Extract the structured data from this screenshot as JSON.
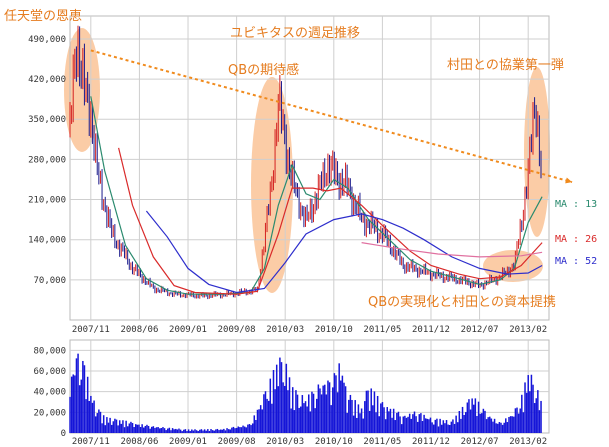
{
  "title": "ユビキタスの週足推移",
  "annotations": [
    "任天堂の恩恵",
    "QBの期待感",
    "村田との協業第一弾",
    "QBの実現化と村田との資本提携"
  ],
  "ma_labels": [
    "MA : 13",
    "MA : 26",
    "MA : 52"
  ],
  "colors": {
    "candle": "#cc2222",
    "ma13": "#2a8a6e",
    "ma26": "#d92a2a",
    "ma52": "#2e2ecc",
    "ma_long": "#e070a0",
    "volume": "#1515d8",
    "highlight": "#f7a35c",
    "trend": "#f08a1c",
    "annotation": "#e57c1f",
    "grid": "#cfcfcf"
  },
  "chart_data": [
    {
      "type": "line",
      "ylim": [
        0,
        530000
      ],
      "y_ticks": [
        70000,
        140000,
        210000,
        280000,
        350000,
        420000,
        490000
      ],
      "y_tick_labels": [
        "70,000",
        "140,000",
        "210,000",
        "280,000",
        "350,000",
        "420,000",
        "490,000"
      ],
      "x_ticks": [
        "2007/11",
        "2008/06",
        "2009/01",
        "2009/08",
        "2010/03",
        "2010/10",
        "2011/05",
        "2011/12",
        "2012/07",
        "2013/02"
      ],
      "trendline": {
        "from": [
          "2007/11",
          470000
        ],
        "to": [
          "2013/04",
          230000
        ]
      },
      "price_keypoints": [
        [
          "2007/08",
          330000
        ],
        [
          "2007/09",
          495000
        ],
        [
          "2007/10",
          400000
        ],
        [
          "2007/11",
          360000
        ],
        [
          "2007/12",
          250000
        ],
        [
          "2008/02",
          150000
        ],
        [
          "2008/05",
          90000
        ],
        [
          "2008/08",
          55000
        ],
        [
          "2008/11",
          45000
        ],
        [
          "2009/03",
          42000
        ],
        [
          "2009/07",
          45000
        ],
        [
          "2009/11",
          52000
        ],
        [
          "2010/01",
          230000
        ],
        [
          "2010/02",
          380000
        ],
        [
          "2010/04",
          240000
        ],
        [
          "2010/06",
          170000
        ],
        [
          "2010/08",
          230000
        ],
        [
          "2010/09",
          270000
        ],
        [
          "2010/10",
          255000
        ],
        [
          "2010/12",
          230000
        ],
        [
          "2011/02",
          175000
        ],
        [
          "2011/05",
          150000
        ],
        [
          "2011/08",
          95000
        ],
        [
          "2011/12",
          80000
        ],
        [
          "2012/04",
          70000
        ],
        [
          "2012/07",
          60000
        ],
        [
          "2012/10",
          75000
        ],
        [
          "2012/12",
          95000
        ],
        [
          "2013/01",
          170000
        ],
        [
          "2013/02",
          250000
        ],
        [
          "2013/03",
          395000
        ],
        [
          "2013/04",
          225000
        ]
      ],
      "series": [
        {
          "name": "MA : 13",
          "points": [
            [
              "2007/11",
              390000
            ],
            [
              "2008/01",
              260000
            ],
            [
              "2008/04",
              130000
            ],
            [
              "2008/07",
              72000
            ],
            [
              "2008/10",
              52000
            ],
            [
              "2009/01",
              45000
            ],
            [
              "2009/06",
              45000
            ],
            [
              "2009/10",
              48000
            ],
            [
              "2009/12",
              90000
            ],
            [
              "2010/02",
              200000
            ],
            [
              "2010/04",
              270000
            ],
            [
              "2010/06",
              220000
            ],
            [
              "2010/08",
              210000
            ],
            [
              "2010/10",
              245000
            ],
            [
              "2010/12",
              230000
            ],
            [
              "2011/03",
              175000
            ],
            [
              "2011/06",
              140000
            ],
            [
              "2011/09",
              105000
            ],
            [
              "2011/12",
              85000
            ],
            [
              "2012/04",
              72000
            ],
            [
              "2012/07",
              62000
            ],
            [
              "2012/10",
              70000
            ],
            [
              "2012/12",
              90000
            ],
            [
              "2013/02",
              170000
            ],
            [
              "2013/04",
              215000
            ]
          ]
        },
        {
          "name": "MA : 26",
          "points": [
            [
              "2008/03",
              300000
            ],
            [
              "2008/05",
              200000
            ],
            [
              "2008/08",
              110000
            ],
            [
              "2008/11",
              60000
            ],
            [
              "2009/02",
              48000
            ],
            [
              "2009/08",
              45000
            ],
            [
              "2009/11",
              50000
            ],
            [
              "2010/02",
              150000
            ],
            [
              "2010/04",
              230000
            ],
            [
              "2010/07",
              230000
            ],
            [
              "2010/09",
              225000
            ],
            [
              "2010/11",
              230000
            ],
            [
              "2011/02",
              200000
            ],
            [
              "2011/05",
              165000
            ],
            [
              "2011/09",
              120000
            ],
            [
              "2011/12",
              95000
            ],
            [
              "2012/04",
              80000
            ],
            [
              "2012/07",
              72000
            ],
            [
              "2012/10",
              75000
            ],
            [
              "2013/01",
              95000
            ],
            [
              "2013/04",
              135000
            ]
          ]
        },
        {
          "name": "MA : 52",
          "points": [
            [
              "2008/07",
              190000
            ],
            [
              "2008/10",
              145000
            ],
            [
              "2009/01",
              90000
            ],
            [
              "2009/04",
              62000
            ],
            [
              "2009/08",
              48000
            ],
            [
              "2009/12",
              55000
            ],
            [
              "2010/03",
              100000
            ],
            [
              "2010/06",
              150000
            ],
            [
              "2010/10",
              175000
            ],
            [
              "2011/02",
              185000
            ],
            [
              "2011/05",
              175000
            ],
            [
              "2011/08",
              160000
            ],
            [
              "2011/11",
              140000
            ],
            [
              "2012/03",
              110000
            ],
            [
              "2012/07",
              90000
            ],
            [
              "2012/11",
              80000
            ],
            [
              "2013/02",
              82000
            ],
            [
              "2013/04",
              95000
            ]
          ]
        },
        {
          "name": "",
          "points": [
            [
              "2011/02",
              135000
            ],
            [
              "2011/07",
              125000
            ],
            [
              "2012/01",
              115000
            ],
            [
              "2012/07",
              110000
            ],
            [
              "2013/01",
              112000
            ],
            [
              "2013/04",
              118000
            ]
          ]
        }
      ]
    },
    {
      "type": "bar",
      "ylim": [
        0,
        90000
      ],
      "y_ticks": [
        0,
        20000,
        40000,
        60000,
        80000
      ],
      "y_tick_labels": [
        "0",
        "20,000",
        "40,000",
        "60,000",
        "80,000"
      ],
      "x_ticks": [
        "2007/11",
        "2008/06",
        "2009/01",
        "2009/08",
        "2010/03",
        "2010/10",
        "2011/05",
        "2011/12",
        "2012/07",
        "2013/02"
      ],
      "volume_peaks": [
        [
          "2007/08",
          52000
        ],
        [
          "2007/09",
          84000
        ],
        [
          "2007/10",
          72000
        ],
        [
          "2007/11",
          40000
        ],
        [
          "2007/12",
          25000
        ],
        [
          "2008/01",
          16000
        ],
        [
          "2008/04",
          12000
        ],
        [
          "2008/06",
          9000
        ],
        [
          "2008/09",
          6000
        ],
        [
          "2009/01",
          3500
        ],
        [
          "2009/06",
          4000
        ],
        [
          "2009/10",
          9000
        ],
        [
          "2010/01",
          55000
        ],
        [
          "2010/02",
          75000
        ],
        [
          "2010/03",
          72000
        ],
        [
          "2010/04",
          45000
        ],
        [
          "2010/06",
          35000
        ],
        [
          "2010/08",
          50000
        ],
        [
          "2010/10",
          58000
        ],
        [
          "2010/11",
          72000
        ],
        [
          "2010/12",
          40000
        ],
        [
          "2011/02",
          25000
        ],
        [
          "2011/03",
          48000
        ],
        [
          "2011/05",
          30000
        ],
        [
          "2011/08",
          18000
        ],
        [
          "2011/10",
          22000
        ],
        [
          "2011/12",
          15000
        ],
        [
          "2012/03",
          12000
        ],
        [
          "2012/06",
          38000
        ],
        [
          "2012/08",
          20000
        ],
        [
          "2012/10",
          10000
        ],
        [
          "2012/12",
          22000
        ],
        [
          "2013/01",
          35000
        ],
        [
          "2013/02",
          62000
        ],
        [
          "2013/03",
          50000
        ],
        [
          "2013/04",
          28000
        ]
      ]
    }
  ]
}
